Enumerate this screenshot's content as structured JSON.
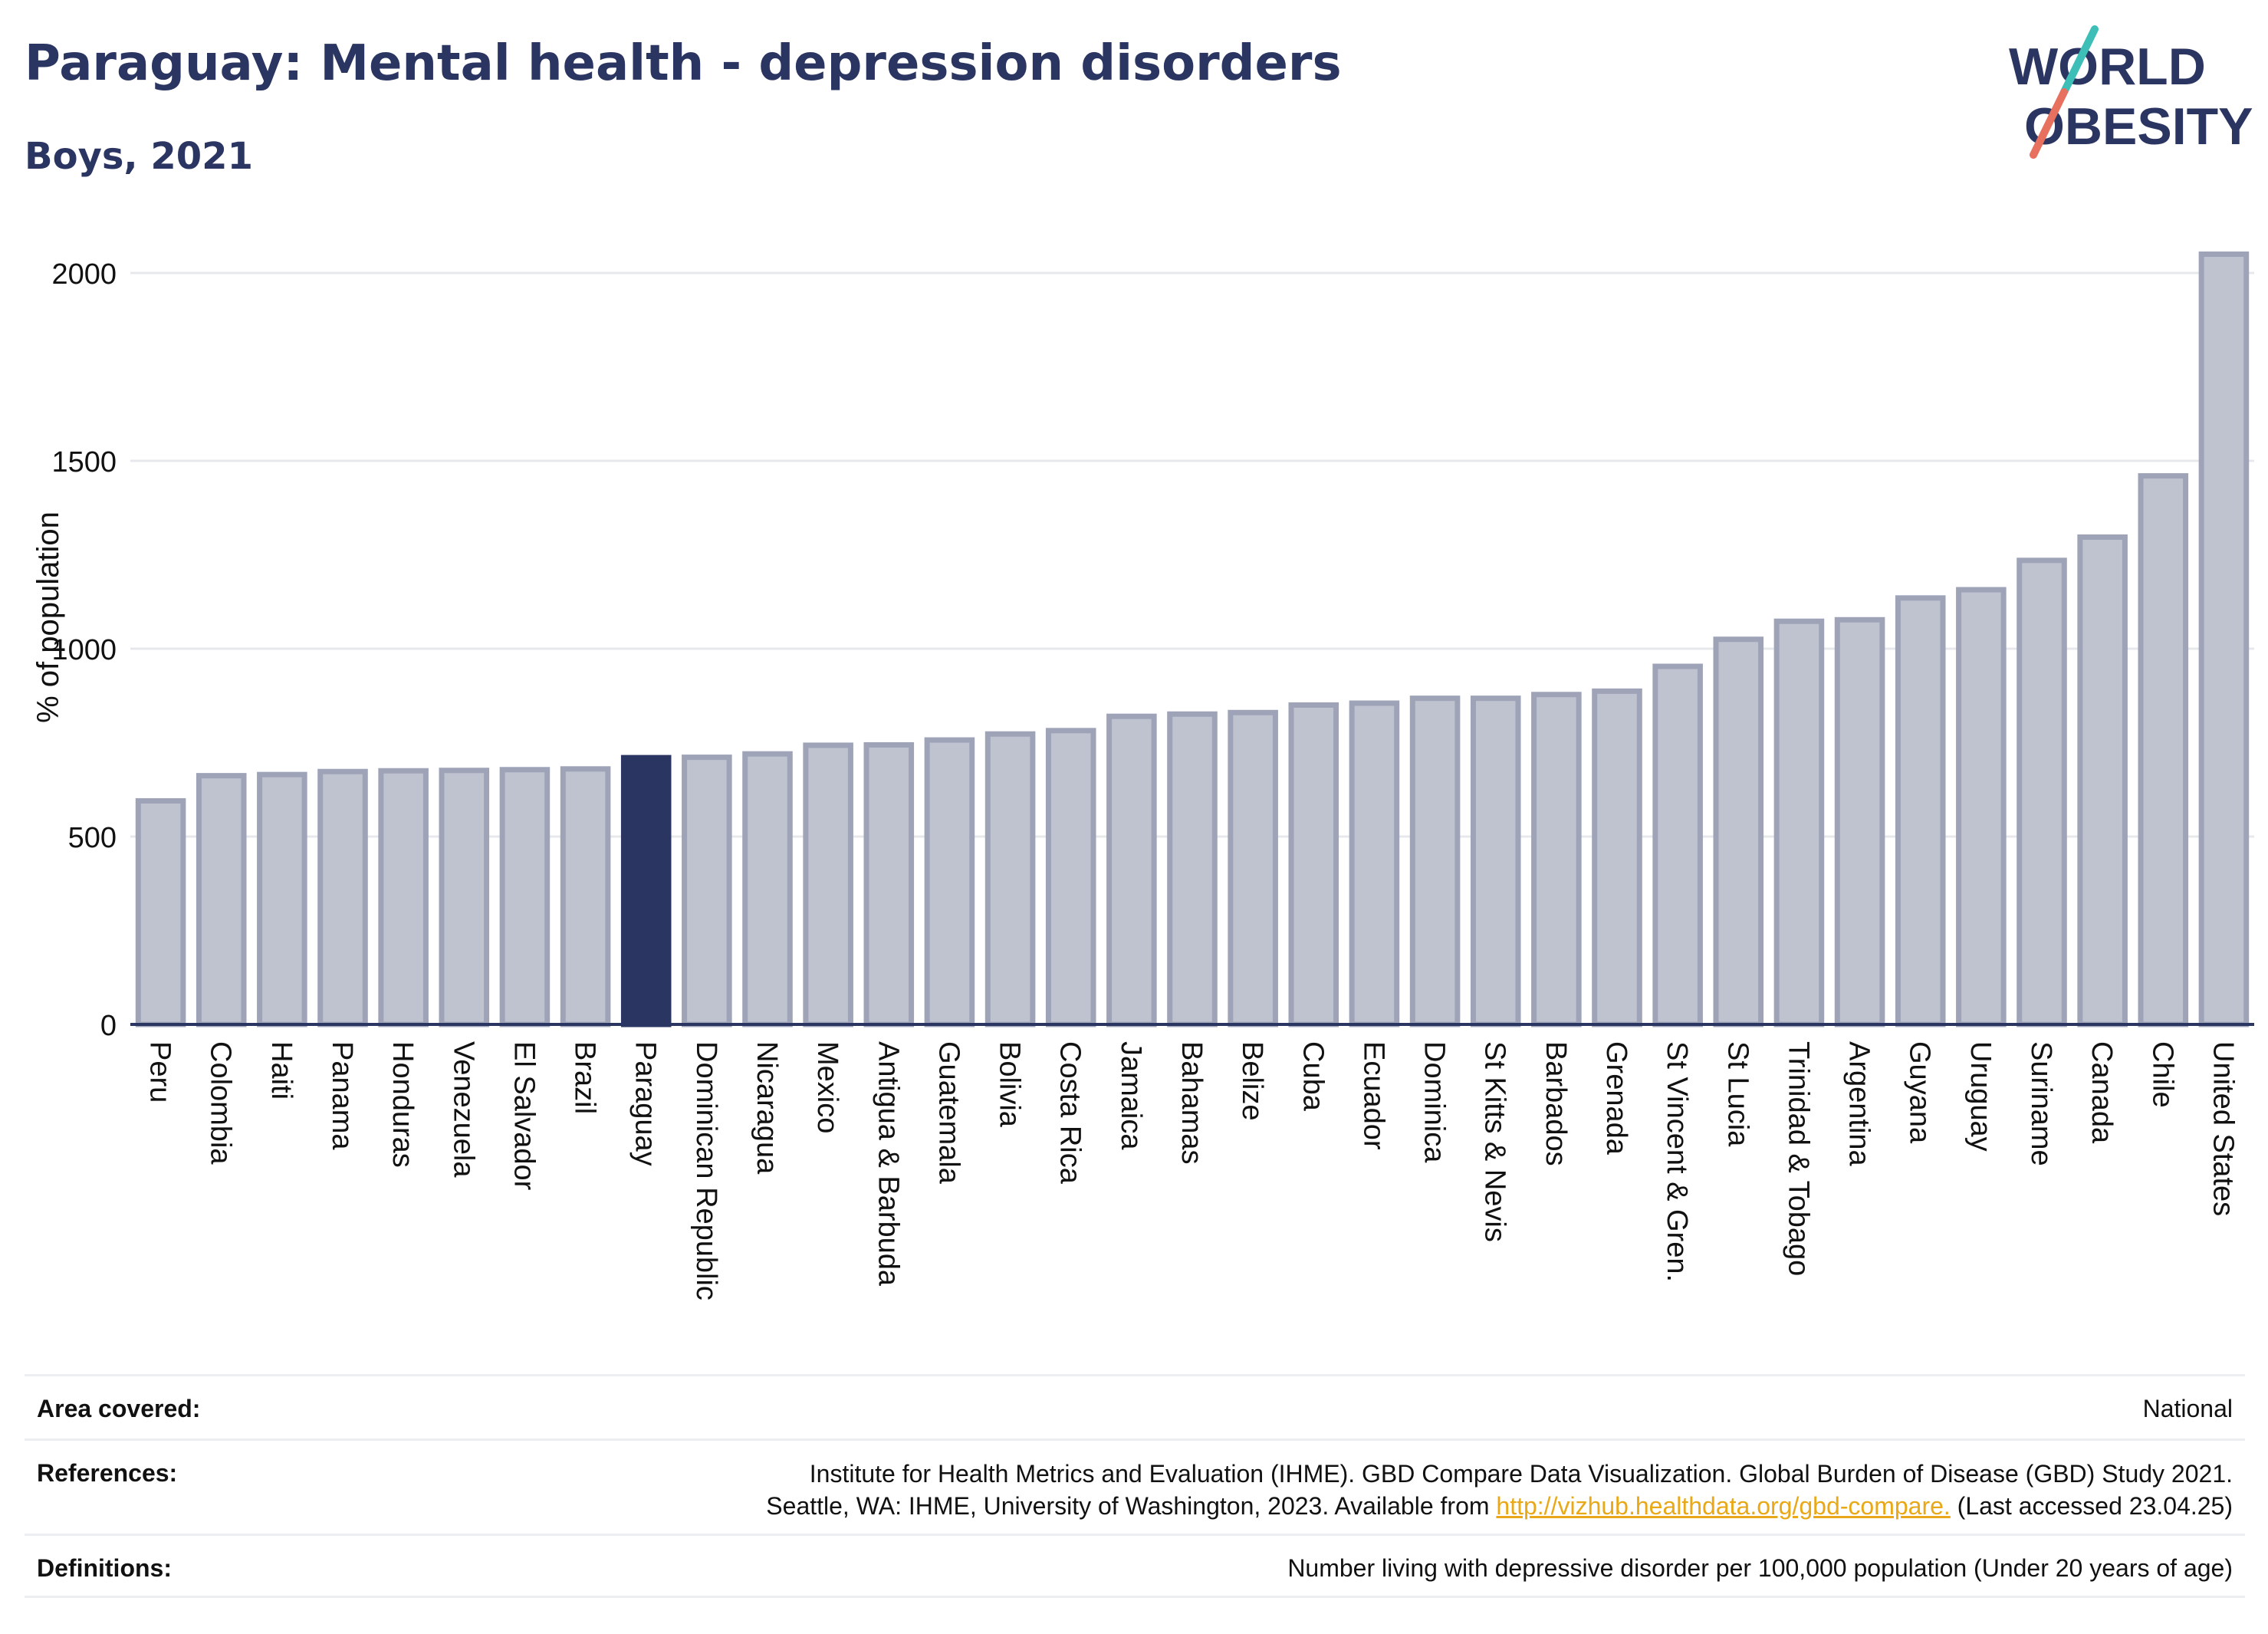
{
  "header": {
    "title": "Paraguay: Mental health - depression disorders",
    "subtitle": "Boys, 2021"
  },
  "logo": {
    "line1": "WORLD",
    "line2": "OBESITY",
    "stroke_color": "#2b3561",
    "accent_teal": "#3dbfb8",
    "accent_coral": "#e8705f"
  },
  "colors": {
    "highlight": "#2b3561",
    "bar_fill": "#bfc3d0",
    "bar_stroke": "#9ea3b8",
    "grid": "#e6e8ec",
    "axis": "#2b3561"
  },
  "chart_data": {
    "type": "bar",
    "ylabel": "% of population",
    "xlabel": "",
    "ylim": [
      0,
      2100
    ],
    "yticks": [
      0,
      500,
      1000,
      1500,
      2000
    ],
    "grid": true,
    "highlight": "Paraguay",
    "categories": [
      "Peru",
      "Colombia",
      "Haiti",
      "Panama",
      "Honduras",
      "Venezuela",
      "El Salvador",
      "Brazil",
      "Paraguay",
      "Dominican Republic",
      "Nicaragua",
      "Mexico",
      "Antigua & Barbuda",
      "Guatemala",
      "Bolivia",
      "Costa Rica",
      "Jamaica",
      "Bahamas",
      "Belize",
      "Cuba",
      "Ecuador",
      "Dominica",
      "St Kitts & Nevis",
      "Barbados",
      "Grenada",
      "St Vincent & Gren.",
      "St Lucia",
      "Trinidad & Tobago",
      "Argentina",
      "Guyana",
      "Uruguay",
      "Suriname",
      "Canada",
      "Chile",
      "United States"
    ],
    "values": [
      595,
      662,
      665,
      673,
      675,
      676,
      678,
      680,
      710,
      711,
      720,
      743,
      744,
      757,
      773,
      782,
      820,
      826,
      830,
      850,
      855,
      868,
      868,
      878,
      887,
      953,
      1025,
      1073,
      1077,
      1135,
      1157,
      1235,
      1297,
      1460,
      2050
    ]
  },
  "info": {
    "area_label": "Area covered:",
    "area_value": "National",
    "ref_label": "References:",
    "ref_line1": "Institute for Health Metrics and Evaluation (IHME). GBD Compare Data Visualization. Global Burden of Disease (GBD) Study 2021.",
    "ref_line2_pre": "Seattle, WA: IHME, University of Washington, 2023. Available from ",
    "ref_link": "http://vizhub.healthdata.org/gbd-compare.",
    "ref_line2_post": " (Last accessed 23.04.25)",
    "def_label": "Definitions:",
    "def_value": "Number living with depressive disorder per 100,000 population (Under 20 years of age)"
  }
}
